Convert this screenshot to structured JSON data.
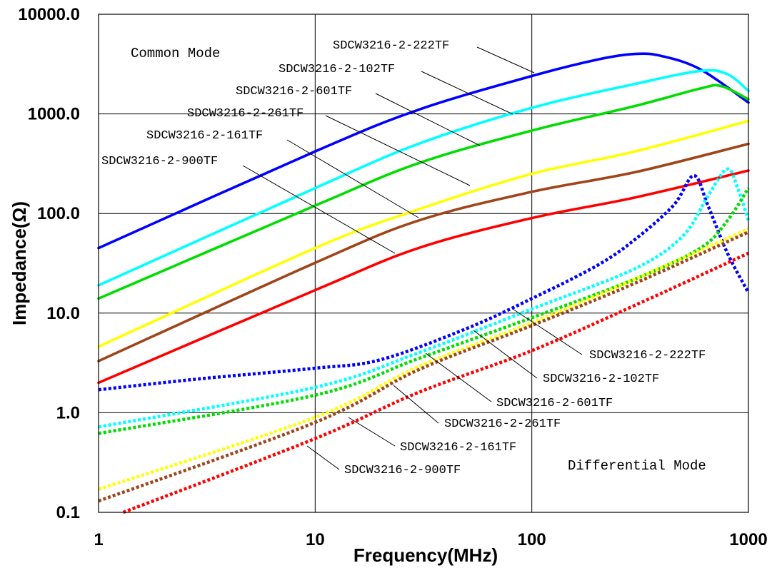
{
  "chart_data": {
    "type": "line",
    "x_scale": "log",
    "y_scale": "log",
    "xlabel": "Frequency(MHz)",
    "ylabel": "Impedance(Ω)",
    "xlim": [
      1,
      1000
    ],
    "ylim": [
      0.1,
      10000
    ],
    "x_tick_labels": [
      "1",
      "10",
      "100",
      "1000"
    ],
    "y_tick_labels": [
      "0.1",
      "1.0",
      "10.0",
      "100.0",
      "1000.0",
      "10000.0"
    ],
    "grid": true,
    "annotations": {
      "common_mode": "Common Mode",
      "differential_mode": "Differential Mode"
    },
    "series": [
      {
        "name": "SDCW3216-2-222TF",
        "mode": "common",
        "color": "#0000ff",
        "style": "solid",
        "x": [
          1,
          10,
          30,
          100,
          200,
          300,
          400,
          600,
          1000
        ],
        "y": [
          45,
          420,
          1100,
          2400,
          3500,
          4000,
          3800,
          2800,
          1300
        ]
      },
      {
        "name": "SDCW3216-2-102TF",
        "mode": "common",
        "color": "#00ffff",
        "style": "solid",
        "x": [
          1,
          10,
          30,
          100,
          300,
          600,
          800,
          1000
        ],
        "y": [
          19,
          180,
          500,
          1150,
          2000,
          2700,
          2500,
          1700
        ]
      },
      {
        "name": "SDCW3216-2-601TF",
        "mode": "common",
        "color": "#00dd00",
        "style": "solid",
        "x": [
          1,
          10,
          30,
          100,
          300,
          600,
          750,
          1000
        ],
        "y": [
          14,
          120,
          320,
          680,
          1200,
          1800,
          1900,
          1400
        ]
      },
      {
        "name": "SDCW3216-2-261TF",
        "mode": "common",
        "color": "#ffff00",
        "style": "solid",
        "x": [
          1,
          10,
          30,
          100,
          300,
          1000
        ],
        "y": [
          4.6,
          45,
          110,
          250,
          420,
          850
        ]
      },
      {
        "name": "SDCW3216-2-161TF",
        "mode": "common",
        "color": "#a0441a",
        "style": "solid",
        "x": [
          1,
          10,
          30,
          100,
          300,
          1000
        ],
        "y": [
          3.3,
          32,
          85,
          165,
          260,
          500
        ]
      },
      {
        "name": "SDCW3216-2-900TF",
        "mode": "common",
        "color": "#ff0000",
        "style": "solid",
        "x": [
          1,
          10,
          30,
          100,
          300,
          1000
        ],
        "y": [
          2.0,
          17,
          45,
          90,
          145,
          270
        ]
      },
      {
        "name": "SDCW3216-2-222TF",
        "mode": "differential",
        "color": "#0000ff",
        "style": "dotted",
        "x": [
          1,
          3,
          10,
          20,
          50,
          100,
          200,
          300,
          450,
          560,
          650,
          800,
          1000
        ],
        "y": [
          1.7,
          2.2,
          2.8,
          3.4,
          7,
          14,
          30,
          55,
          120,
          240,
          120,
          40,
          16
        ]
      },
      {
        "name": "SDCW3216-2-102TF",
        "mode": "differential",
        "color": "#00ffff",
        "style": "dotted",
        "x": [
          1,
          10,
          30,
          100,
          300,
          500,
          650,
          800,
          900,
          1000
        ],
        "y": [
          0.72,
          1.8,
          4,
          11,
          28,
          60,
          150,
          280,
          170,
          85
        ]
      },
      {
        "name": "SDCW3216-2-601TF",
        "mode": "differential",
        "color": "#00dd00",
        "style": "dotted",
        "x": [
          1,
          10,
          30,
          100,
          300,
          600,
          800,
          1000
        ],
        "y": [
          0.62,
          1.5,
          3.5,
          9,
          22,
          45,
          85,
          180
        ]
      },
      {
        "name": "SDCW3216-2-261TF",
        "mode": "differential",
        "color": "#ffff00",
        "style": "dotted",
        "x": [
          1,
          10,
          30,
          100,
          300,
          1000
        ],
        "y": [
          0.17,
          0.9,
          2.9,
          8,
          22,
          70
        ]
      },
      {
        "name": "SDCW3216-2-161TF",
        "mode": "differential",
        "color": "#a0441a",
        "style": "dotted",
        "x": [
          1,
          10,
          30,
          100,
          300,
          1000
        ],
        "y": [
          0.13,
          0.8,
          2.7,
          7.5,
          20,
          65
        ]
      },
      {
        "name": "SDCW3216-2-900TF",
        "mode": "differential",
        "color": "#ff0000",
        "style": "dotted",
        "x": [
          1.3,
          10,
          30,
          100,
          300,
          1000
        ],
        "y": [
          0.1,
          0.55,
          1.6,
          4.2,
          12,
          40
        ]
      }
    ],
    "labels": {
      "common": [
        "SDCW3216-2-222TF",
        "SDCW3216-2-102TF",
        "SDCW3216-2-601TF",
        "SDCW3216-2-261TF",
        "SDCW3216-2-161TF",
        "SDCW3216-2-900TF"
      ],
      "differential": [
        "SDCW3216-2-222TF",
        "SDCW3216-2-102TF",
        "SDCW3216-2-601TF",
        "SDCW3216-2-261TF",
        "SDCW3216-2-161TF",
        "SDCW3216-2-900TF"
      ]
    }
  }
}
